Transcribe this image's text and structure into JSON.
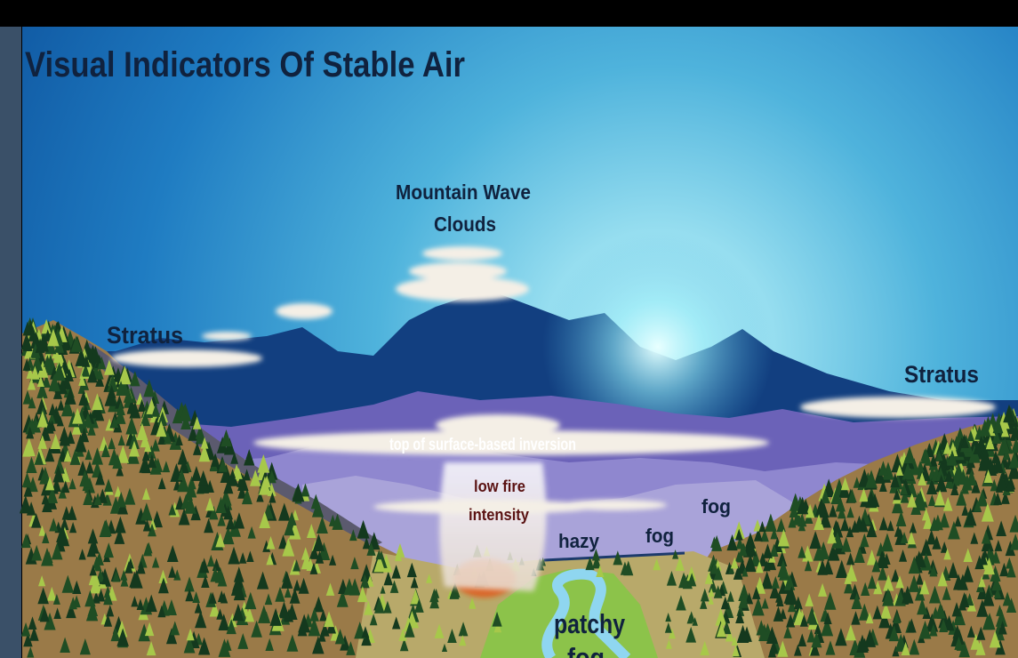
{
  "title": "Visual Indicators Of Stable Air",
  "labels": {
    "mountain_wave": [
      "Mountain Wave",
      "Clouds"
    ],
    "stratus_left": "Stratus",
    "stratus_right": "Stratus",
    "inversion": "top of surface-based inversion",
    "fire": [
      "low fire",
      "intensity"
    ],
    "hazy": "hazy",
    "fog_low": "fog",
    "fog_high": "fog",
    "patchy_fog": [
      "patchy",
      "fog"
    ]
  }
}
